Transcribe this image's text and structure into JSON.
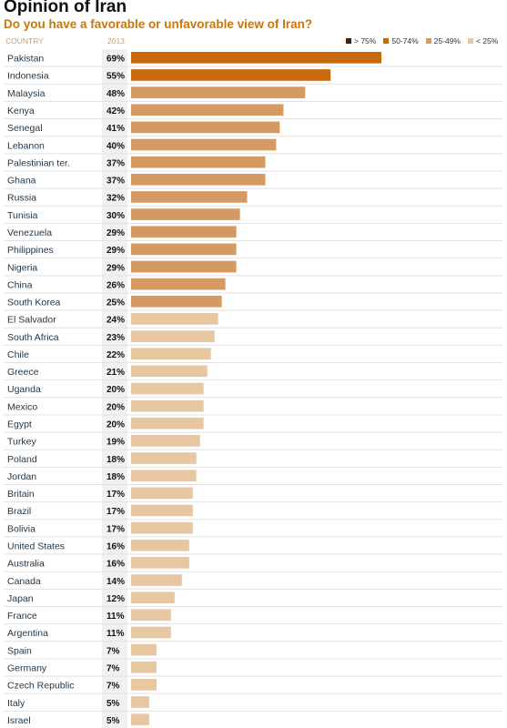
{
  "title": "Opinion of Iran",
  "subtitle": "Do you have a favorable or unfavorable view of Iran?",
  "header": {
    "country": "COUNTRY",
    "year": "2013"
  },
  "legend": [
    {
      "label": "> 75%",
      "color": "#3a2410"
    },
    {
      "label": "50-74%",
      "color": "#c8690f"
    },
    {
      "label": "25-49%",
      "color": "#d49a62"
    },
    {
      "label": "< 25%",
      "color": "#e7c6a2"
    }
  ],
  "chart_data": {
    "type": "bar",
    "orientation": "horizontal",
    "title": "Opinion of Iran",
    "subtitle": "Do you have a favorable or unfavorable view of Iran?",
    "xlim": [
      0,
      100
    ],
    "value_suffix": "%",
    "categories": [
      "Pakistan",
      "Indonesia",
      "Malaysia",
      "Kenya",
      "Senegal",
      "Lebanon",
      "Palestinian ter.",
      "Ghana",
      "Russia",
      "Tunisia",
      "Venezuela",
      "Philippines",
      "Nigeria",
      "China",
      "South Korea",
      "El Salvador",
      "South Africa",
      "Chile",
      "Greece",
      "Uganda",
      "Mexico",
      "Egypt",
      "Turkey",
      "Poland",
      "Jordan",
      "Britain",
      "Brazil",
      "Bolivia",
      "United States",
      "Australia",
      "Canada",
      "Japan",
      "France",
      "Argentina",
      "Spain",
      "Germany",
      "Czech Republic",
      "Italy",
      "Israel"
    ],
    "values": [
      69,
      55,
      48,
      42,
      41,
      40,
      37,
      37,
      32,
      30,
      29,
      29,
      29,
      26,
      25,
      24,
      23,
      22,
      21,
      20,
      20,
      20,
      19,
      18,
      18,
      17,
      17,
      17,
      16,
      16,
      14,
      12,
      11,
      11,
      7,
      7,
      7,
      5,
      5
    ],
    "color_bins": [
      {
        "label": "> 75%",
        "min": 75,
        "color": "#3a2410"
      },
      {
        "label": "50-74%",
        "min": 50,
        "color": "#c8690f"
      },
      {
        "label": "25-49%",
        "min": 25,
        "color": "#d49a62"
      },
      {
        "label": "< 25%",
        "min": 0,
        "color": "#e7c6a2"
      }
    ]
  }
}
